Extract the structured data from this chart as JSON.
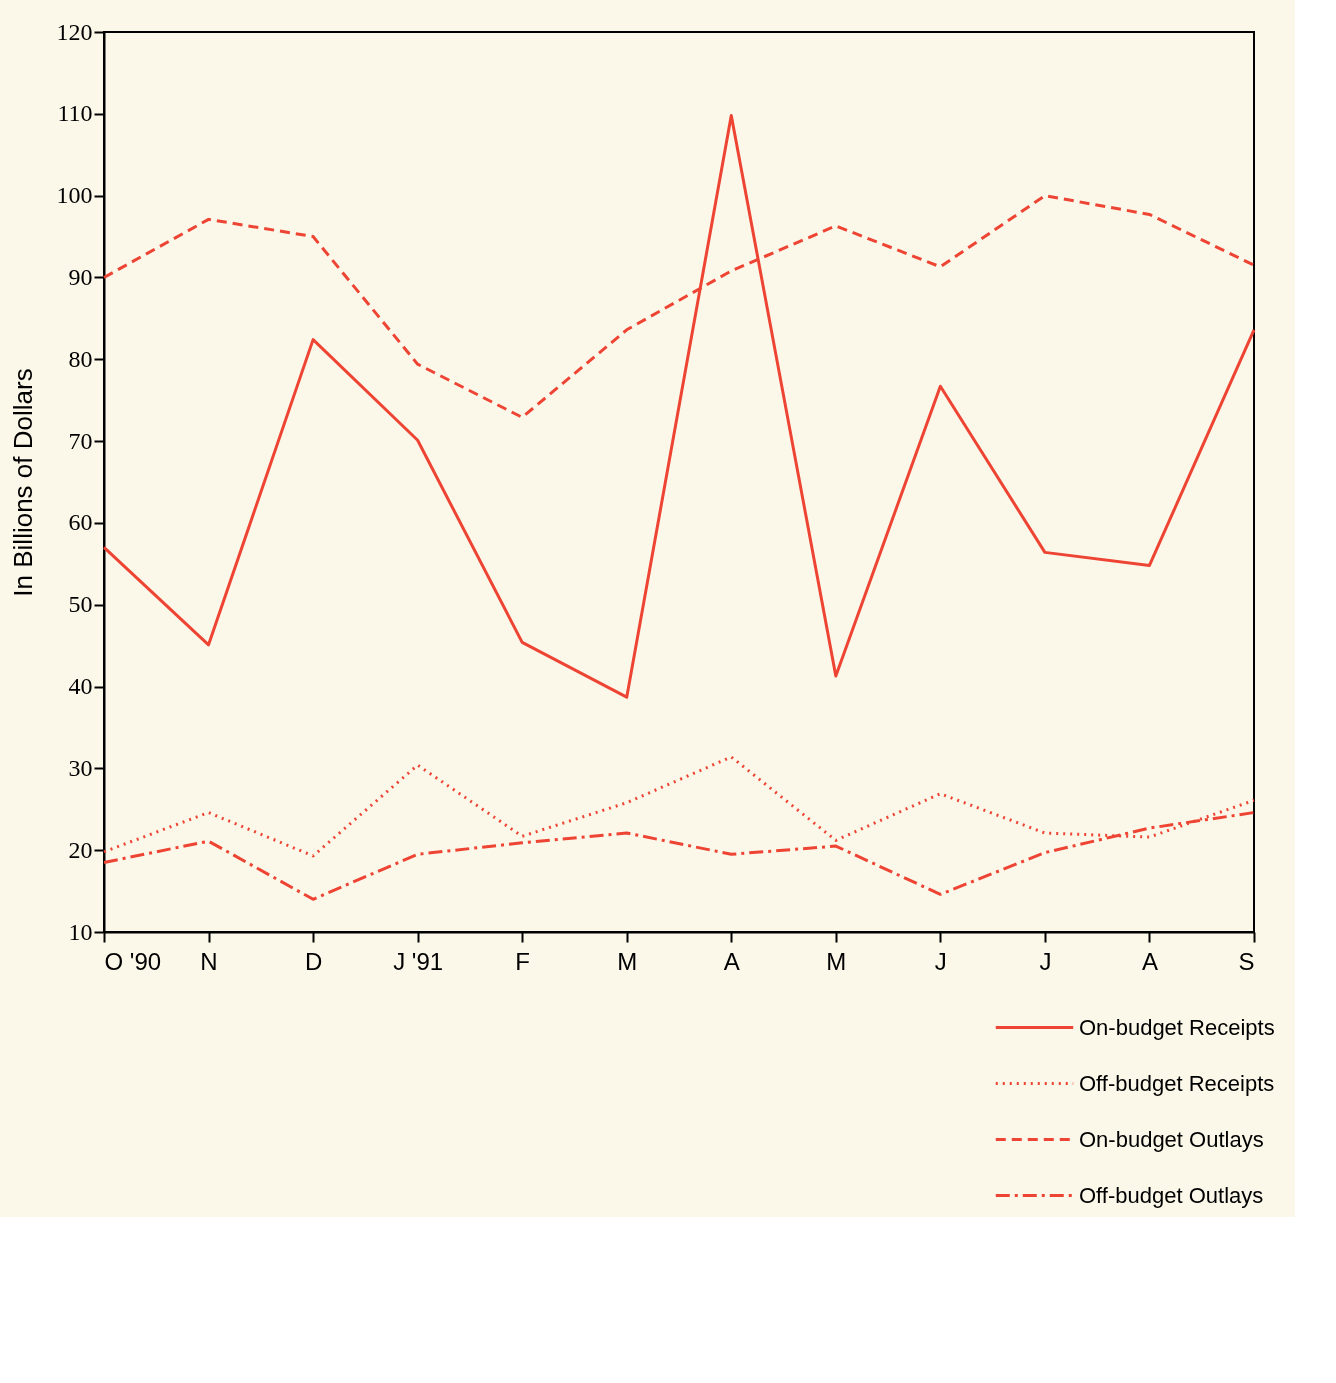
{
  "chart_data": {
    "type": "line",
    "ylabel": "In Billions of Dollars",
    "categories": [
      "O '90",
      "N",
      "D",
      "J '91",
      "F",
      "M",
      "A",
      "M",
      "J",
      "J",
      "A",
      "S"
    ],
    "ylim": [
      10,
      120
    ],
    "yticks": [
      10,
      20,
      30,
      40,
      50,
      60,
      70,
      80,
      90,
      100,
      110,
      120
    ],
    "grid": false,
    "legend": "bottom right",
    "series": [
      {
        "name": "On-budget Receipts",
        "color": "#ee4433",
        "line_style": "solid",
        "values": [
          57.0,
          45.1,
          82.4,
          70.1,
          45.4,
          38.7,
          109.8,
          41.3,
          76.7,
          56.4,
          54.8,
          83.6
        ]
      },
      {
        "name": "Off-budget Receipts",
        "color": "#ee4433",
        "line_style": "dotted",
        "values": [
          19.8,
          24.6,
          19.3,
          30.4,
          21.7,
          25.8,
          31.4,
          21.2,
          26.9,
          22.1,
          21.6,
          26.1
        ]
      },
      {
        "name": "On-budget Outlays",
        "color": "#ee4433",
        "line_style": "dashed",
        "values": [
          90.0,
          97.1,
          95.0,
          79.4,
          72.9,
          83.6,
          90.8,
          96.3,
          91.3,
          100.0,
          97.7,
          91.5
        ]
      },
      {
        "name": "Off-budget Outlays",
        "color": "#ee4433",
        "line_style": "dashdot",
        "values": [
          18.5,
          21.1,
          14.0,
          19.5,
          20.9,
          22.1,
          19.5,
          20.5,
          14.6,
          19.7,
          22.7,
          24.6
        ]
      }
    ]
  }
}
